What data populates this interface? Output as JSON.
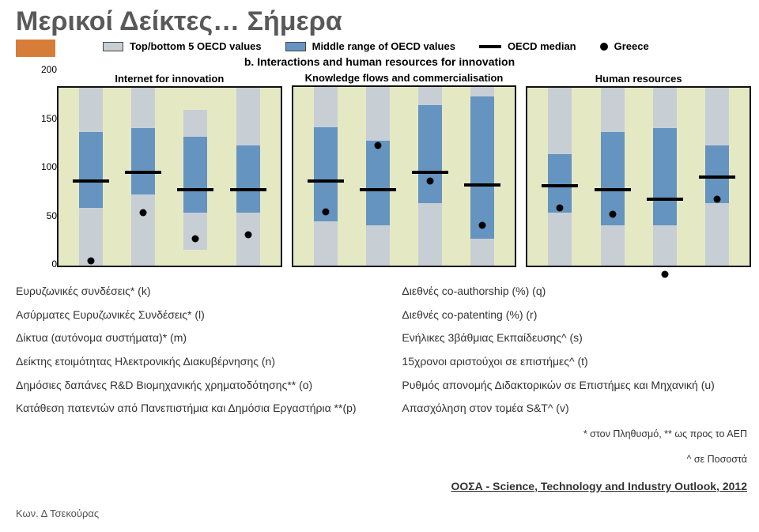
{
  "title": "Μερικοί Δείκτες… Σήμερα",
  "legend": {
    "topBottom": {
      "label": "Top/bottom 5 OECD values",
      "color": "#c7cfd5"
    },
    "middle": {
      "label": "Middle range of OECD values",
      "color": "#6694c0"
    },
    "median": {
      "label": "OECD median"
    },
    "greece": {
      "label": "Greece"
    }
  },
  "chart": {
    "title": "b. Interactions and human resources for innovation",
    "plot_bg": "#e4e9c4",
    "border_color": "#111111",
    "gray": "#c7cfd5",
    "blue": "#6694c0",
    "ylim": [
      0,
      200
    ],
    "yticks": [
      200,
      150,
      100,
      50,
      0
    ],
    "panels": [
      {
        "label": "Internet for innovation",
        "bars": [
          {
            "top": 200,
            "upper": 150,
            "lower": 65,
            "bottom": 0,
            "median": 95,
            "greece": 5
          },
          {
            "top": 200,
            "upper": 155,
            "lower": 80,
            "bottom": 0,
            "median": 105,
            "greece": 60
          },
          {
            "top": 175,
            "upper": 145,
            "lower": 60,
            "bottom": 18,
            "median": 85,
            "greece": 30
          },
          {
            "top": 200,
            "upper": 135,
            "lower": 60,
            "bottom": 0,
            "median": 85,
            "greece": 35
          }
        ]
      },
      {
        "label": "Knowledge flows and commercialisation",
        "bars": [
          {
            "top": 200,
            "upper": 155,
            "lower": 50,
            "bottom": 0,
            "median": 95,
            "greece": 60
          },
          {
            "top": 200,
            "upper": 140,
            "lower": 45,
            "bottom": 0,
            "median": 85,
            "greece": 135
          },
          {
            "top": 200,
            "upper": 180,
            "lower": 70,
            "bottom": 0,
            "median": 105,
            "greece": 95
          },
          {
            "top": 200,
            "upper": 190,
            "lower": 30,
            "bottom": 0,
            "median": 90,
            "greece": 45
          }
        ]
      },
      {
        "label": "Human resources",
        "bars": [
          {
            "top": 200,
            "upper": 125,
            "lower": 60,
            "bottom": 0,
            "median": 90,
            "greece": 65
          },
          {
            "top": 200,
            "upper": 150,
            "lower": 45,
            "bottom": 0,
            "median": 85,
            "greece": 58
          },
          {
            "top": 200,
            "upper": 155,
            "lower": 45,
            "bottom": 0,
            "median": 75,
            "greece": -10
          },
          {
            "top": 200,
            "upper": 135,
            "lower": 70,
            "bottom": 0,
            "median": 100,
            "greece": 75
          }
        ]
      }
    ]
  },
  "left_items": [
    "Ευρυζωνικές συνδέσεις* (k)",
    "Ασύρματες Ευρυζωνικές Συνδέσεις* (l)",
    "Δίκτυα (αυτόνομα συστήματα)* (m)",
    "Δείκτης ετοιμότητας Ηλεκτρονικής Διακυβέρνησης (n)",
    "Δημόσιες δαπάνες R&D Βιομηχανικής χρηματοδότησης** (o)",
    "Κατάθεση πατεντών από Πανεπιστήμια και Δημόσια Εργαστήρια **(p)"
  ],
  "right_items": [
    "Διεθνές co-authorship (%) (q)",
    "Διεθνές co-patenting (%) (r)",
    "Ενήλικες 3βάθμιας Εκπαίδευσης^ (s)",
    "15χρονοι αριστούχοι σε επιστήμες^ (t)",
    "Ρυθμός απονομής Διδακτορικών σε Επιστήμες και Μηχανική (u)",
    "Απασχόληση στον τομέα S&T^ (v)"
  ],
  "footnotes": [
    "* στον Πληθυσμό, ** ως προς το ΑΕΠ",
    "^ σε Ποσοστά"
  ],
  "source": "ΟΟΣΑ - Science, Technology and Industry Outlook, 2012",
  "author": "Κων. Δ Τσεκούρας"
}
